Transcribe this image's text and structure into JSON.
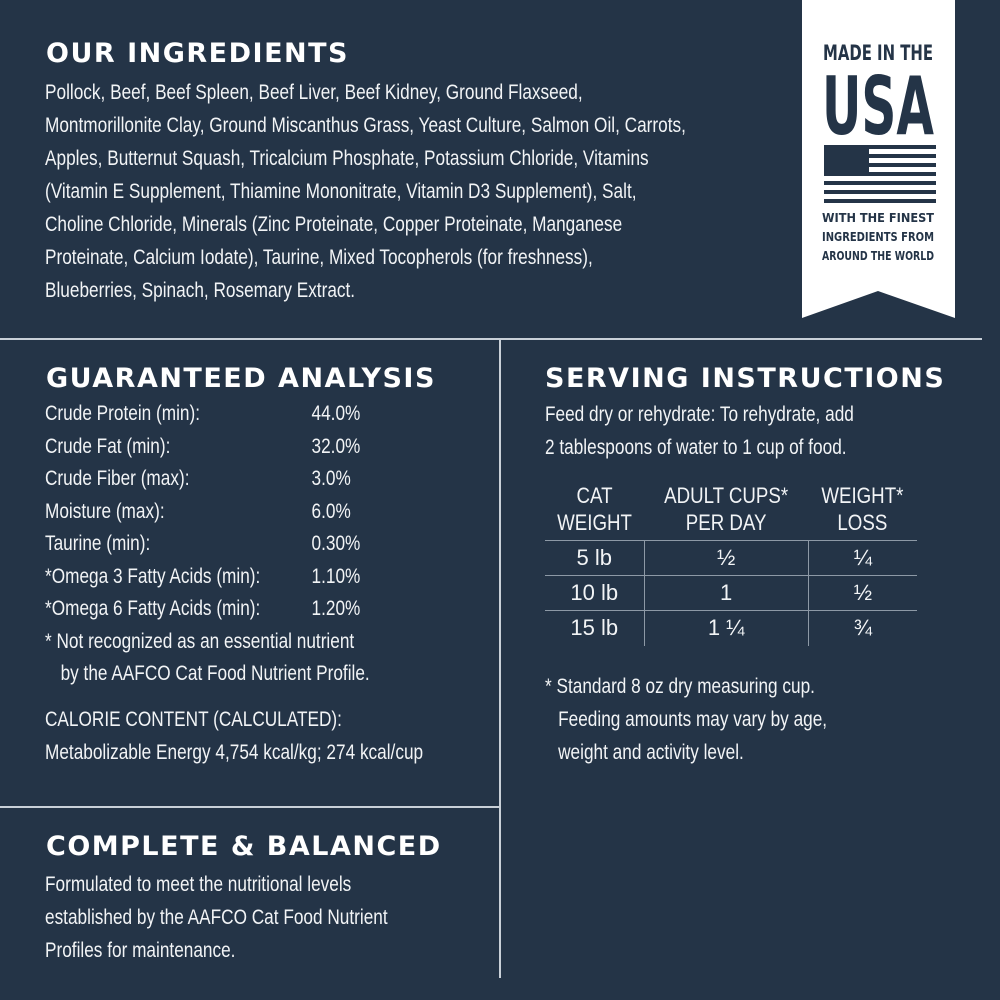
{
  "ingredients": {
    "title": "OUR INGREDIENTS",
    "lines": [
      "Pollock, Beef, Beef Spleen, Beef Liver, Beef Kidney, Ground Flaxseed,",
      "Montmorillonite Clay, Ground Miscanthus Grass, Yeast Culture, Salmon Oil, Carrots,",
      "Apples, Butternut Squash, Tricalcium Phosphate, Potassium Chloride, Vitamins",
      "(Vitamin E Supplement, Thiamine Mononitrate, Vitamin D3 Supplement), Salt,",
      "Choline Chloride, Minerals (Zinc Proteinate, Copper Proteinate, Manganese",
      "Proteinate, Calcium Iodate), Taurine, Mixed Tocopherols (for freshness),",
      "Blueberries, Spinach, Rosemary Extract."
    ]
  },
  "badge": {
    "line1": "MADE IN THE",
    "line2": "USA",
    "line3": "WITH THE FINEST",
    "line4": "INGREDIENTS FROM",
    "line5": "AROUND THE WORLD",
    "icon": "us-flag-icon"
  },
  "analysis": {
    "title": "GUARANTEED ANALYSIS",
    "rows": [
      [
        "Crude Protein (min):",
        "44.0%"
      ],
      [
        "Crude Fat (min):",
        "32.0%"
      ],
      [
        "Crude Fiber (max):",
        "3.0%"
      ],
      [
        "Moisture (max):",
        "6.0%"
      ],
      [
        "Taurine (min):",
        "0.30%"
      ],
      [
        "*Omega 3 Fatty Acids (min):",
        "1.10%"
      ],
      [
        "*Omega 6 Fatty Acids (min):",
        "1.20%"
      ]
    ],
    "note1": "* Not recognized as an essential nutrient",
    "note2": "by the AAFCO Cat Food Nutrient Profile.",
    "calorie_title": "CALORIE CONTENT (CALCULATED):",
    "calorie_value": "Metabolizable Energy 4,754 kcal/kg; 274 kcal/cup"
  },
  "complete": {
    "title": "COMPLETE & BALANCED",
    "lines": [
      "Formulated to meet the nutritional levels",
      "established by the AAFCO Cat Food Nutrient",
      "Profiles for maintenance."
    ]
  },
  "serving": {
    "title": "SERVING INSTRUCTIONS",
    "lines": [
      "Feed dry or rehydrate: To rehydrate, add",
      "2 tablespoons of water to 1 cup of food."
    ],
    "headers": [
      [
        "CAT",
        "WEIGHT"
      ],
      [
        "ADULT CUPS*",
        "PER DAY"
      ],
      [
        "WEIGHT*",
        "LOSS"
      ]
    ],
    "rows": [
      [
        "5 lb",
        "½",
        "¼"
      ],
      [
        "10 lb",
        "1",
        "½"
      ],
      [
        "15 lb",
        "1 ¼",
        "¾"
      ]
    ],
    "notes": [
      "* Standard 8 oz dry measuring cup.",
      "Feeding amounts may vary by age,",
      "weight and activity level."
    ]
  }
}
